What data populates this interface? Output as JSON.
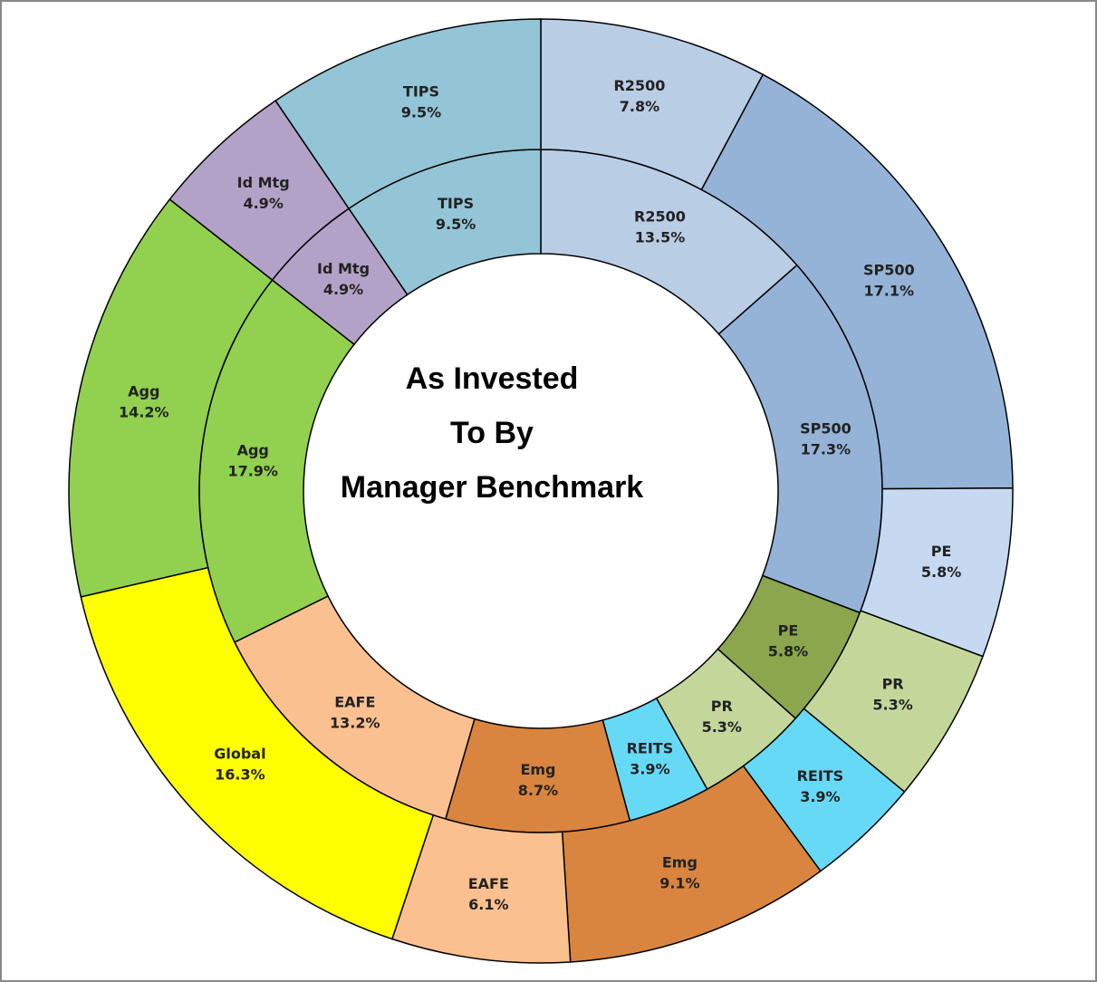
{
  "chart_data": {
    "type": "donut",
    "title": [
      "As Invested",
      "To By",
      "Manager Benchmark"
    ],
    "rings": [
      {
        "categories": [
          "R2500",
          "SP500",
          "PE",
          "PR",
          "REITS",
          "Emg",
          "EAFE",
          "Agg",
          "Id Mtg",
          "TIPS"
        ],
        "values": [
          13.5,
          17.3,
          5.8,
          5.3,
          3.9,
          8.7,
          13.2,
          17.9,
          4.9,
          9.5
        ],
        "value_labels": [
          "13.5%",
          "17.3%",
          "5.8%",
          "5.3%",
          "3.9%",
          "8.7%",
          "13.2%",
          "17.9%",
          "4.9%",
          "9.5%"
        ],
        "colors": [
          "#b9cde5",
          "#95b3d7",
          "#8ba64c",
          "#c4d79b",
          "#66d9f7",
          "#d9853f",
          "#fac090",
          "#92d050",
          "#b3a2c7",
          "#93c5d6"
        ]
      },
      {
        "categories": [
          "R2500",
          "SP500",
          "PE",
          "PR",
          "REITS",
          "Emg",
          "EAFE",
          "Global",
          "Agg",
          "Id Mtg",
          "TIPS"
        ],
        "values": [
          7.8,
          17.1,
          5.8,
          5.3,
          3.9,
          9.1,
          6.1,
          16.3,
          14.2,
          4.9,
          9.5
        ],
        "value_labels": [
          "7.8%",
          "17.1%",
          "5.8%",
          "5.3%",
          "3.9%",
          "9.1%",
          "6.1%",
          "16.3%",
          "14.2%",
          "4.9%",
          "9.5%"
        ],
        "colors": [
          "#b9cde5",
          "#95b3d7",
          "#c6d9f1",
          "#c4d79b",
          "#66d9f7",
          "#d9853f",
          "#fac090",
          "#ffff00",
          "#92d050",
          "#b3a2c7",
          "#93c5d6"
        ]
      }
    ]
  }
}
